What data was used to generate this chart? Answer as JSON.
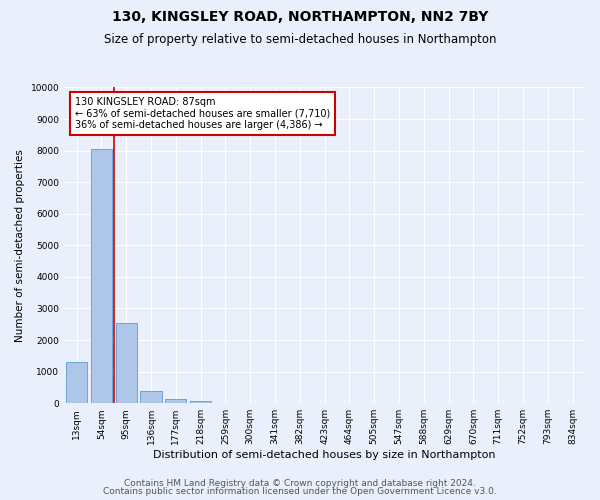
{
  "title": "130, KINGSLEY ROAD, NORTHAMPTON, NN2 7BY",
  "subtitle": "Size of property relative to semi-detached houses in Northampton",
  "xlabel": "Distribution of semi-detached houses by size in Northampton",
  "ylabel": "Number of semi-detached properties",
  "bar_labels": [
    "13sqm",
    "54sqm",
    "95sqm",
    "136sqm",
    "177sqm",
    "218sqm",
    "259sqm",
    "300sqm",
    "341sqm",
    "382sqm",
    "423sqm",
    "464sqm",
    "505sqm",
    "547sqm",
    "588sqm",
    "629sqm",
    "670sqm",
    "711sqm",
    "752sqm",
    "793sqm",
    "834sqm"
  ],
  "bar_values": [
    1320,
    8050,
    2530,
    380,
    130,
    80,
    0,
    0,
    0,
    0,
    0,
    0,
    0,
    0,
    0,
    0,
    0,
    0,
    0,
    0,
    0
  ],
  "bar_color": "#aec6e8",
  "bar_edge_color": "#5b9bd5",
  "annotation_title": "130 KINGSLEY ROAD: 87sqm",
  "annotation_line1": "← 63% of semi-detached houses are smaller (7,710)",
  "annotation_line2": "36% of semi-detached houses are larger (4,386) →",
  "annotation_box_color": "#ffffff",
  "annotation_box_edge": "#cc0000",
  "vline_color": "#cc0000",
  "ylim": [
    0,
    10000
  ],
  "yticks": [
    0,
    1000,
    2000,
    3000,
    4000,
    5000,
    6000,
    7000,
    8000,
    9000,
    10000
  ],
  "footer1": "Contains HM Land Registry data © Crown copyright and database right 2024.",
  "footer2": "Contains public sector information licensed under the Open Government Licence v3.0.",
  "bg_color": "#eaf0fb",
  "plot_bg_color": "#eaf0fb",
  "grid_color": "#ffffff",
  "title_fontsize": 10,
  "subtitle_fontsize": 8.5,
  "tick_fontsize": 6.5,
  "ylabel_fontsize": 7.5,
  "xlabel_fontsize": 8,
  "annotation_fontsize": 7,
  "footer_fontsize": 6.5
}
